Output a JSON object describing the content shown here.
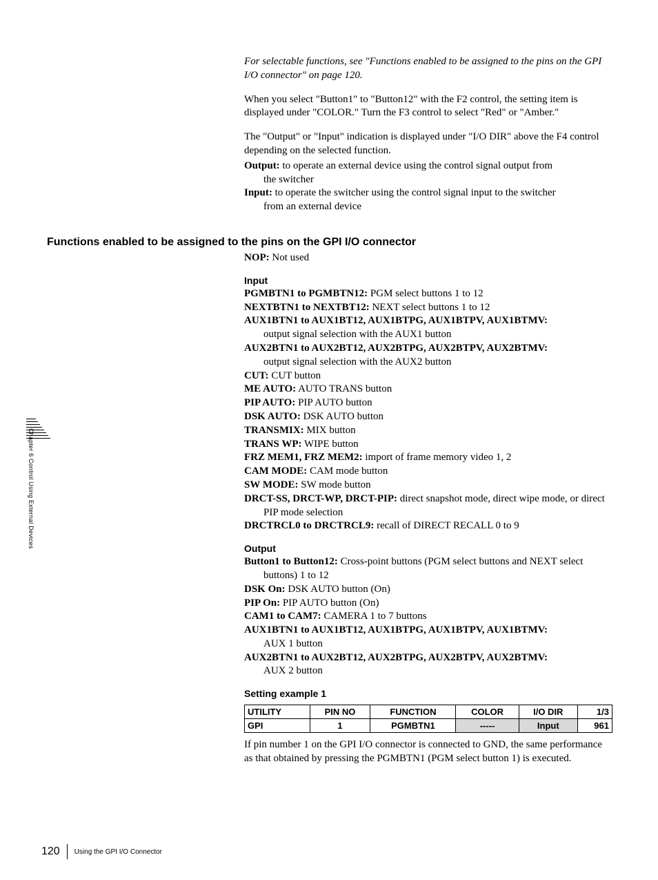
{
  "sideTab": "Chapter 6  Control Using External Devices",
  "intro": {
    "p1": "For selectable functions, see \"Functions enabled to be assigned to the pins on the GPI I/O connector\" on page 120.",
    "p2": "When you select \"Button1\" to \"Button12\" with the F2 control, the setting item is displayed under \"COLOR.\" Turn the F3 control to select \"Red\" or \"Amber.\"",
    "p3": "The \"Output\" or \"Input\" indication is displayed under \"I/O DIR\" above the F4 control depending on the selected function.",
    "out_term": "Output:",
    "out_desc": " to operate an external device using the control signal output from the switcher",
    "in_term": "Input:",
    "in_desc": " to operate the switcher using the control signal input to the switcher from an external device"
  },
  "heading": "Functions enabled to be assigned to the pins on the GPI I/O connector",
  "nop_term": "NOP:",
  "nop_desc": " Not used",
  "input_heading": "Input",
  "input_items": [
    {
      "term": "PGMBTN1 to PGMBTN12:",
      "desc": " PGM select buttons 1 to 12"
    },
    {
      "term": "NEXTBTN1 to NEXTBT12:",
      "desc": " NEXT select buttons 1 to 12"
    },
    {
      "term": "AUX1BTN1 to AUX1BT12, AUX1BTPG, AUX1BTPV, AUX1BTMV:",
      "desc": "output signal selection with the AUX1 button",
      "wrap": true
    },
    {
      "term": "AUX2BTN1 to AUX2BT12, AUX2BTPG, AUX2BTPV, AUX2BTMV:",
      "desc": "output signal selection with the AUX2 button",
      "wrap": true
    },
    {
      "term": "CUT:",
      "desc": " CUT button"
    },
    {
      "term": "ME AUTO:",
      "desc": " AUTO TRANS button"
    },
    {
      "term": "PIP AUTO:",
      "desc": " PIP AUTO button"
    },
    {
      "term": "DSK AUTO:",
      "desc": " DSK AUTO button"
    },
    {
      "term": "TRANSMIX:",
      "desc": " MIX button"
    },
    {
      "term": "TRANS WP:",
      "desc": " WIPE button"
    },
    {
      "term": "FRZ MEM1, FRZ MEM2:",
      "desc": " import of frame memory video 1, 2"
    },
    {
      "term": "CAM MODE:",
      "desc": " CAM mode button"
    },
    {
      "term": "SW MODE:",
      "desc": " SW mode button"
    },
    {
      "term": "DRCT-SS, DRCT-WP, DRCT-PIP:",
      "desc": " direct snapshot mode, direct wipe mode, or direct PIP mode selection",
      "wrap2": true
    },
    {
      "term": "DRCTRCL0 to DRCTRCL9:",
      "desc": " recall of DIRECT RECALL 0 to 9"
    }
  ],
  "output_heading": "Output",
  "output_items": [
    {
      "term": "Button1 to Button12:",
      "desc": " Cross-point buttons (PGM select buttons and NEXT select buttons) 1 to 12",
      "wrap2": true
    },
    {
      "term": "DSK On:",
      "desc": " DSK AUTO button (On)"
    },
    {
      "term": "PIP On:",
      "desc": " PIP AUTO button (On)"
    },
    {
      "term": "CAM1 to CAM7:",
      "desc": " CAMERA 1 to 7 buttons"
    },
    {
      "term": "AUX1BTN1 to AUX1BT12, AUX1BTPG, AUX1BTPV, AUX1BTMV:",
      "desc": "AUX 1 button",
      "wrap": true
    },
    {
      "term": "AUX2BTN1 to AUX2BT12, AUX2BTPG, AUX2BTPV, AUX2BTMV:",
      "desc": "AUX 2 button",
      "wrap": true
    }
  ],
  "example_heading": "Setting example 1",
  "table": {
    "headers": [
      "UTILITY",
      "PIN NO",
      "FUNCTION",
      "COLOR",
      "I/O DIR",
      "1/3"
    ],
    "row": [
      "GPI",
      "1",
      "PGMBTN1",
      "-----",
      "Input",
      "961"
    ]
  },
  "example_desc": "If pin number 1 on the GPI I/O connector is connected to GND, the same performance as that obtained by pressing the PGMBTN1 (PGM select button 1) is executed.",
  "footer": {
    "page": "120",
    "title": "Using the GPI I/O Connector"
  }
}
